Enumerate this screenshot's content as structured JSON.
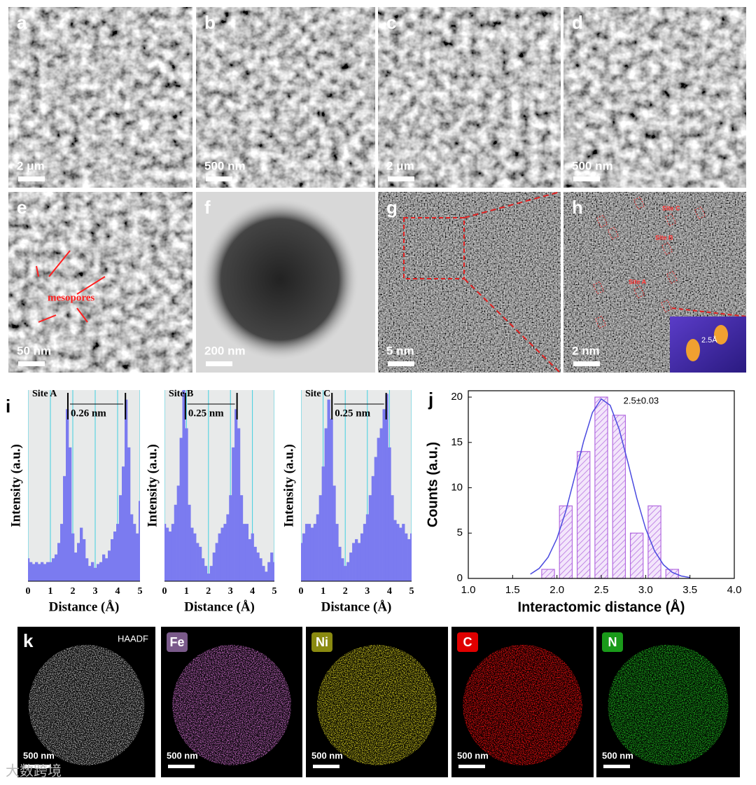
{
  "figure": {
    "sem_tem_panels": [
      {
        "label": "a",
        "scale_bar": "2 μm"
      },
      {
        "label": "b",
        "scale_bar": "500 nm"
      },
      {
        "label": "c",
        "scale_bar": "2 μm"
      },
      {
        "label": "d",
        "scale_bar": "500 nm"
      },
      {
        "label": "e",
        "scale_bar": "50 nm",
        "annotation": "mesopores"
      },
      {
        "label": "f",
        "scale_bar": "200 nm"
      },
      {
        "label": "g",
        "scale_bar": "5 nm"
      },
      {
        "label": "h",
        "scale_bar": "2 nm",
        "sites": [
          "Site C",
          "Site B",
          "Site A"
        ],
        "inset_label": "2.5Å"
      }
    ],
    "profile_label": "i",
    "histogram_label": "j",
    "eds": {
      "label": "k",
      "maps": [
        {
          "name": "HAADF",
          "scale_bar": "500 nm"
        },
        {
          "name": "Fe",
          "scale_bar": "500 nm"
        },
        {
          "name": "Ni",
          "scale_bar": "500 nm"
        },
        {
          "name": "C",
          "scale_bar": "500 nm"
        },
        {
          "name": "N",
          "scale_bar": "500 nm"
        }
      ]
    },
    "watermark": "大数跨境"
  },
  "chart_data": [
    {
      "type": "profile",
      "title": "Site A",
      "annotation": "0.26 nm",
      "span": [
        1.78,
        4.35
      ],
      "color": "#7b7bf0",
      "x": [
        0,
        0.125,
        0.25,
        0.375,
        0.5,
        0.625,
        0.75,
        0.875,
        1,
        1.125,
        1.25,
        1.375,
        1.5,
        1.625,
        1.75,
        1.875,
        2,
        2.125,
        2.25,
        2.375,
        2.5,
        2.625,
        2.75,
        2.875,
        3,
        3.125,
        3.25,
        3.375,
        3.5,
        3.625,
        3.75,
        3.875,
        4,
        4.125,
        4.25,
        4.375,
        4.5,
        4.625,
        4.75,
        4.875,
        5
      ],
      "values": [
        0.12,
        0.1,
        0.09,
        0.1,
        0.09,
        0.1,
        0.09,
        0.1,
        0.1,
        0.12,
        0.14,
        0.2,
        0.3,
        0.55,
        0.9,
        0.7,
        0.25,
        0.15,
        0.2,
        0.28,
        0.22,
        0.12,
        0.08,
        0.1,
        0.07,
        0.09,
        0.1,
        0.14,
        0.12,
        0.16,
        0.22,
        0.26,
        0.3,
        0.45,
        0.6,
        0.95,
        0.7,
        0.35,
        0.3,
        0.25,
        0.42
      ],
      "xlim": [
        0,
        5
      ],
      "xticks": [
        0,
        1,
        2,
        3,
        4,
        5
      ],
      "ylim": [
        0,
        1
      ],
      "grid": true,
      "xlabel": "Distance (Å)",
      "ylabel": "Intensity (a.u.)"
    },
    {
      "type": "profile",
      "title": "Site B",
      "annotation": "0.25 nm",
      "span": [
        0.95,
        3.3
      ],
      "color": "#7b7bf0",
      "x": [
        0,
        0.125,
        0.25,
        0.375,
        0.5,
        0.625,
        0.75,
        0.875,
        1,
        1.125,
        1.25,
        1.375,
        1.5,
        1.625,
        1.75,
        1.875,
        2,
        2.125,
        2.25,
        2.375,
        2.5,
        2.625,
        2.75,
        2.875,
        3,
        3.125,
        3.25,
        3.375,
        3.5,
        3.625,
        3.75,
        3.875,
        4,
        4.125,
        4.25,
        4.375,
        4.5,
        4.625,
        4.75,
        4.875,
        5
      ],
      "values": [
        0.3,
        0.28,
        0.26,
        0.3,
        0.4,
        0.5,
        0.75,
        1,
        0.8,
        0.4,
        0.28,
        0.25,
        0.2,
        0.18,
        0.12,
        0.08,
        0.04,
        0.08,
        0.15,
        0.2,
        0.25,
        0.28,
        0.3,
        0.35,
        0.45,
        0.7,
        0.9,
        0.8,
        0.45,
        0.3,
        0.3,
        0.22,
        0.25,
        0.18,
        0.15,
        0.12,
        0.08,
        0.05,
        0.1,
        0.15,
        0.1
      ],
      "xlim": [
        0,
        5
      ],
      "xticks": [
        0,
        1,
        2,
        3,
        4,
        5
      ],
      "ylim": [
        0,
        1
      ],
      "grid": true,
      "xlabel": "Distance (Å)",
      "ylabel": "Intensity (a.u.)"
    },
    {
      "type": "profile",
      "title": "Site C",
      "annotation": "0.25 nm",
      "span": [
        1.4,
        3.85
      ],
      "color": "#7b7bf0",
      "x": [
        0,
        0.125,
        0.25,
        0.375,
        0.5,
        0.625,
        0.75,
        0.875,
        1,
        1.125,
        1.25,
        1.375,
        1.5,
        1.625,
        1.75,
        1.875,
        2,
        2.125,
        2.25,
        2.375,
        2.5,
        2.625,
        2.75,
        2.875,
        3,
        3.125,
        3.25,
        3.375,
        3.5,
        3.625,
        3.75,
        3.875,
        4,
        4.125,
        4.25,
        4.375,
        4.5,
        4.625,
        4.75,
        4.875,
        5
      ],
      "values": [
        0.2,
        0.25,
        0.3,
        0.3,
        0.28,
        0.3,
        0.35,
        0.45,
        0.6,
        0.8,
        0.95,
        0.85,
        0.5,
        0.3,
        0.18,
        0.12,
        0.08,
        0.1,
        0.15,
        0.2,
        0.22,
        0.2,
        0.25,
        0.3,
        0.35,
        0.45,
        0.55,
        0.65,
        0.75,
        0.8,
        0.9,
        0.98,
        0.7,
        0.45,
        0.32,
        0.3,
        0.28,
        0.3,
        0.25,
        0.22,
        0.25
      ],
      "xlim": [
        0,
        5
      ],
      "xticks": [
        0,
        1,
        2,
        3,
        4,
        5
      ],
      "ylim": [
        0,
        1
      ],
      "grid": true,
      "xlabel": "Distance (Å)",
      "ylabel": "Intensity (a.u.)"
    },
    {
      "type": "bar",
      "annotation": "2.5±0.03",
      "color": "#b36be0",
      "x": [
        1.9,
        2.1,
        2.3,
        2.5,
        2.7,
        2.9,
        3.1,
        3.3
      ],
      "values": [
        1,
        8,
        14,
        20,
        18,
        5,
        8,
        1
      ],
      "fit": {
        "color": "#4a4adf",
        "x": [
          1.7,
          1.8,
          1.9,
          2.0,
          2.1,
          2.2,
          2.3,
          2.4,
          2.5,
          2.6,
          2.7,
          2.8,
          2.9,
          3.0,
          3.1,
          3.2,
          3.3,
          3.4,
          3.5
        ],
        "values": [
          0.47,
          1.11,
          2.34,
          4.41,
          7.43,
          11.2,
          15.1,
          18.3,
          19.8,
          19.1,
          16.5,
          12.8,
          8.87,
          5.5,
          3.05,
          1.52,
          0.67,
          0.27,
          0.1
        ]
      },
      "xlim": [
        1,
        4
      ],
      "xticks": [
        {
          "value": 1,
          "label": "1.0"
        },
        {
          "value": 1.5,
          "label": "1.5"
        },
        {
          "value": 2,
          "label": "2.0"
        },
        {
          "value": 2.5,
          "label": "2.5"
        },
        {
          "value": 3,
          "label": "3.0"
        },
        {
          "value": 3.5,
          "label": "3.5"
        },
        {
          "value": 4,
          "label": "4.0"
        }
      ],
      "ylim": [
        0,
        20.7
      ],
      "yticks": [
        0,
        5,
        10,
        15,
        20
      ],
      "xlabel": "Interactomic distance (Å)",
      "ylabel": "Counts (a.u.)"
    }
  ]
}
